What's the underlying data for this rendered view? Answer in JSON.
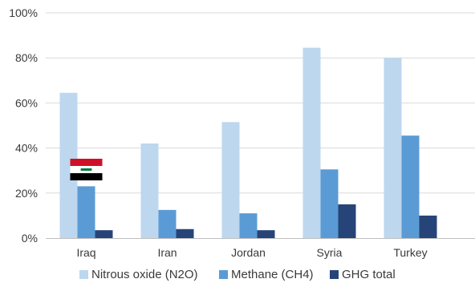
{
  "chart_data": {
    "type": "bar",
    "categories": [
      "Iraq",
      "Iran",
      "Jordan",
      "Syria",
      "Turkey"
    ],
    "series": [
      {
        "name": "Nitrous oxide (N2O)",
        "values": [
          64.5,
          42,
          51.5,
          84.5,
          80
        ],
        "color": "#bdd7ee"
      },
      {
        "name": "Methane (CH4)",
        "values": [
          23,
          12.5,
          11,
          30.5,
          45.5
        ],
        "color": "#5b9bd5"
      },
      {
        "name": "GHG total",
        "values": [
          3.5,
          4,
          3.5,
          15,
          10
        ],
        "color": "#264478"
      }
    ],
    "y_ticks": [
      "0%",
      "20%",
      "40%",
      "60%",
      "80%",
      "100%"
    ],
    "ylim": [
      0,
      100
    ],
    "grid": true,
    "legend_position": "bottom",
    "title": "",
    "xlabel": "",
    "ylabel": "",
    "flag_icon": {
      "name": "iraq-flag-icon",
      "category": "Iraq",
      "colors": [
        "#ce1126",
        "#ffffff",
        "#000000",
        "#007a3d"
      ]
    }
  }
}
